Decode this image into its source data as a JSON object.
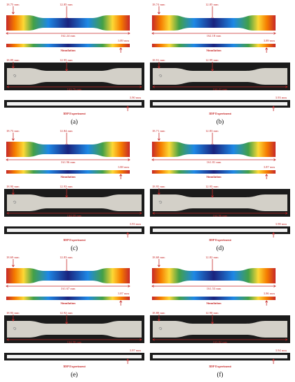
{
  "labels": {
    "simulation": "Simulation",
    "experiment": "3DP Experiment"
  },
  "panels": [
    {
      "label": "(a)",
      "sim": {
        "end_width": "18.75 mm",
        "mid_width": "12.85 mm",
        "length": "162.24 mm",
        "thickness": "3.89 mm"
      },
      "exp": {
        "end_width": "18.89 mm",
        "mid_width": "12.95 mm",
        "length": "163.76 mm",
        "thickness": "3.90 mm"
      }
    },
    {
      "label": "(b)",
      "sim": {
        "end_width": "18.74 mm",
        "mid_width": "12.85 mm",
        "length": "162.18 mm",
        "thickness": "3.89 mm"
      },
      "exp": {
        "end_width": "18.91 mm",
        "mid_width": "12.99 mm",
        "length": "164.21 mm",
        "thickness": "3.93 mm"
      }
    },
    {
      "label": "(c)",
      "sim": {
        "end_width": "18.73 mm",
        "mid_width": "12.84 mm",
        "length": "161.96 mm",
        "thickness": "3.88 mm"
      },
      "exp": {
        "end_width": "18.90 mm",
        "mid_width": "12.93 mm",
        "length": "164.09 mm",
        "thickness": "3.93 mm"
      }
    },
    {
      "label": "(d)",
      "sim": {
        "end_width": "18.71 mm",
        "mid_width": "12.83 mm",
        "length": "161.81 mm",
        "thickness": "3.87 mm"
      },
      "exp": {
        "end_width": "18.95 mm",
        "mid_width": "12.95 mm",
        "length": "164.96 mm",
        "thickness": "3.98 mm"
      }
    },
    {
      "label": "(e)",
      "sim": {
        "end_width": "18.69 mm",
        "mid_width": "12.83 mm",
        "length": "161.67 mm",
        "thickness": "3.87 mm"
      },
      "exp": {
        "end_width": "18.93 mm",
        "mid_width": "12.92 mm",
        "length": "164.90 mm",
        "thickness": "3.97 mm"
      }
    },
    {
      "label": "(f)",
      "sim": {
        "end_width": "18.68 mm",
        "mid_width": "12.82 mm",
        "length": "161.53 mm",
        "thickness": "3.86 mm"
      },
      "exp": {
        "end_width": "18.88 mm",
        "mid_width": "12.90 mm",
        "length": "163.82 mm",
        "thickness": "3.94 mm"
      }
    }
  ],
  "colors": {
    "annotation": "#c62828",
    "frame": "#1b1b1b",
    "specimen": "#d3d0c8",
    "colormap": [
      "#c62828",
      "#f57c00",
      "#fdd835",
      "#43a047",
      "#1e88e5",
      "#1a237e"
    ]
  }
}
